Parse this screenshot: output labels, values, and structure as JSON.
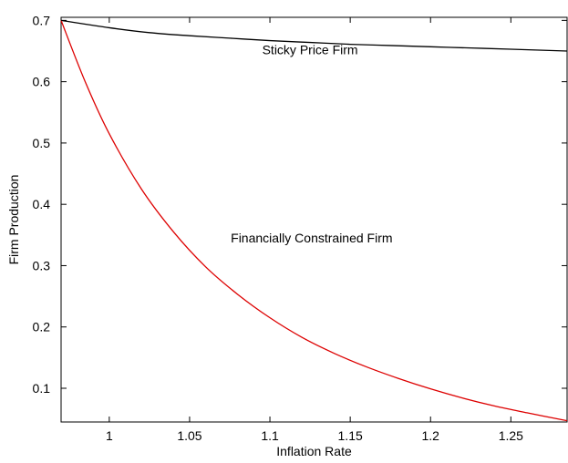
{
  "chart_data": {
    "type": "line",
    "xlabel": "Inflation Rate",
    "ylabel": "Firm Production",
    "xlim": [
      0.97,
      1.285
    ],
    "ylim": [
      0.045,
      0.705
    ],
    "x_ticks": [
      1,
      1.05,
      1.1,
      1.15,
      1.2,
      1.25
    ],
    "x_tick_labels": [
      "1",
      "1.05",
      "1.1",
      "1.15",
      "1.2",
      "1.25"
    ],
    "y_ticks": [
      0.1,
      0.2,
      0.3,
      0.4,
      0.5,
      0.6,
      0.7
    ],
    "y_tick_labels": [
      "0.1",
      "0.2",
      "0.3",
      "0.4",
      "0.5",
      "0.6",
      "0.7"
    ],
    "grid": false,
    "legend": "none",
    "annotations": [
      {
        "text": "Sticky Price Firm",
        "x": 1.125,
        "y": 0.652
      },
      {
        "text": "Financially Constrained Firm",
        "x": 1.126,
        "y": 0.345
      }
    ],
    "series": [
      {
        "color": "#000000",
        "x": [
          0.97,
          1.0,
          1.025,
          1.05,
          1.075,
          1.1,
          1.125,
          1.15,
          1.175,
          1.2,
          1.225,
          1.25,
          1.285
        ],
        "y": [
          0.7,
          0.688,
          0.68,
          0.675,
          0.671,
          0.667,
          0.664,
          0.661,
          0.659,
          0.657,
          0.655,
          0.653,
          0.65
        ]
      },
      {
        "color": "#dd0000",
        "x": [
          0.97,
          0.985,
          1.0,
          1.02,
          1.04,
          1.06,
          1.08,
          1.1,
          1.12,
          1.14,
          1.16,
          1.18,
          1.2,
          1.22,
          1.24,
          1.26,
          1.285
        ],
        "y": [
          0.7,
          0.6,
          0.515,
          0.425,
          0.355,
          0.298,
          0.253,
          0.215,
          0.183,
          0.157,
          0.135,
          0.116,
          0.099,
          0.084,
          0.071,
          0.06,
          0.047
        ]
      }
    ]
  }
}
